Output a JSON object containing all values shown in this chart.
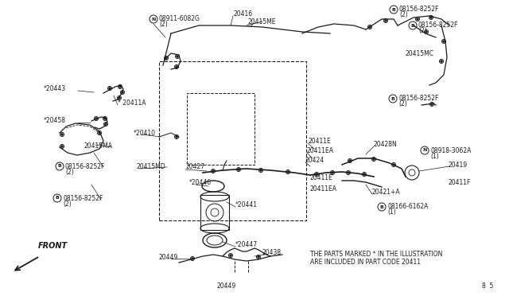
{
  "bg_color": "#ffffff",
  "line_color": "#1a1a1a",
  "text_color": "#1a1a1a",
  "fig_width": 6.4,
  "fig_height": 3.72,
  "dpi": 100,
  "footer_text": "20449",
  "footer_right": "8  5",
  "note_line1": "THE PARTS MARKED * IN THE ILLUSTRATION",
  "note_line2": "ARE INCLUDED IN PART CODE 20411",
  "front_label": "FRONT"
}
